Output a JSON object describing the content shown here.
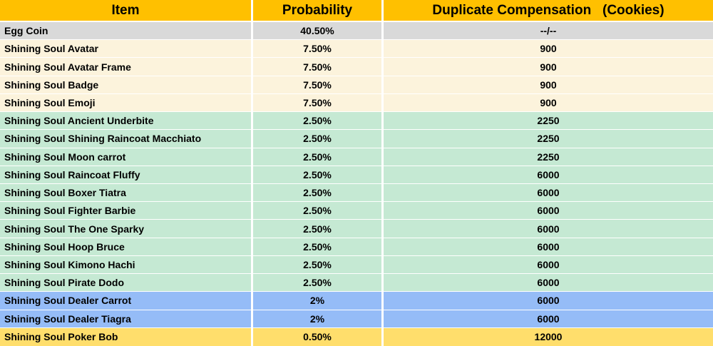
{
  "table": {
    "headers": {
      "item": "Item",
      "probability": "Probability",
      "compensation": "Duplicate Compensation   (Cookies)"
    },
    "rows": [
      {
        "item": "Egg Coin",
        "probability": "40.50%",
        "compensation": "--/--",
        "tier": "gray"
      },
      {
        "item": "Shining Soul Avatar",
        "probability": "7.50%",
        "compensation": "900",
        "tier": "cream"
      },
      {
        "item": "Shining Soul Avatar Frame",
        "probability": "7.50%",
        "compensation": "900",
        "tier": "cream"
      },
      {
        "item": "Shining Soul Badge",
        "probability": "7.50%",
        "compensation": "900",
        "tier": "cream"
      },
      {
        "item": "Shining Soul Emoji",
        "probability": "7.50%",
        "compensation": "900",
        "tier": "cream"
      },
      {
        "item": "Shining Soul Ancient Underbite",
        "probability": "2.50%",
        "compensation": "2250",
        "tier": "green"
      },
      {
        "item": "Shining Soul Shining Raincoat Macchiato",
        "probability": "2.50%",
        "compensation": "2250",
        "tier": "green"
      },
      {
        "item": "Shining Soul Moon carrot",
        "probability": "2.50%",
        "compensation": "2250",
        "tier": "green"
      },
      {
        "item": "Shining Soul Raincoat Fluffy",
        "probability": "2.50%",
        "compensation": "6000",
        "tier": "green"
      },
      {
        "item": "Shining Soul Boxer Tiatra",
        "probability": "2.50%",
        "compensation": "6000",
        "tier": "green"
      },
      {
        "item": "Shining Soul Fighter Barbie",
        "probability": "2.50%",
        "compensation": "6000",
        "tier": "green"
      },
      {
        "item": "Shining Soul The One Sparky",
        "probability": "2.50%",
        "compensation": "6000",
        "tier": "green"
      },
      {
        "item": "Shining Soul Hoop Bruce",
        "probability": "2.50%",
        "compensation": "6000",
        "tier": "green"
      },
      {
        "item": "Shining Soul Kimono Hachi",
        "probability": "2.50%",
        "compensation": "6000",
        "tier": "green"
      },
      {
        "item": "Shining Soul Pirate Dodo",
        "probability": "2.50%",
        "compensation": "6000",
        "tier": "green"
      },
      {
        "item": "Shining Soul Dealer Carrot",
        "probability": "2%",
        "compensation": "6000",
        "tier": "blue"
      },
      {
        "item": "Shining Soul Dealer Tiagra",
        "probability": "2%",
        "compensation": "6000",
        "tier": "blue"
      },
      {
        "item": "Shining Soul Poker Bob",
        "probability": "0.50%",
        "compensation": "12000",
        "tier": "gold"
      }
    ]
  },
  "colors": {
    "header_bg": "#FFC000",
    "gridline": "#FFFFFF",
    "text": "#000000",
    "tiers": {
      "gray": "#D9D9D9",
      "cream": "#FCF3DC",
      "green": "#C5E9D3",
      "blue": "#95BCF7",
      "gold": "#FFDE6C"
    }
  },
  "chart_data": {
    "type": "table",
    "title": "",
    "columns": [
      "Item",
      "Probability",
      "Duplicate Compensation (Cookies)"
    ],
    "rows": [
      [
        "Egg Coin",
        "40.50%",
        "--/--"
      ],
      [
        "Shining Soul Avatar",
        "7.50%",
        "900"
      ],
      [
        "Shining Soul Avatar Frame",
        "7.50%",
        "900"
      ],
      [
        "Shining Soul Badge",
        "7.50%",
        "900"
      ],
      [
        "Shining Soul Emoji",
        "7.50%",
        "900"
      ],
      [
        "Shining Soul Ancient Underbite",
        "2.50%",
        "2250"
      ],
      [
        "Shining Soul Shining Raincoat Macchiato",
        "2.50%",
        "2250"
      ],
      [
        "Shining Soul Moon carrot",
        "2.50%",
        "2250"
      ],
      [
        "Shining Soul Raincoat Fluffy",
        "2.50%",
        "6000"
      ],
      [
        "Shining Soul Boxer Tiatra",
        "2.50%",
        "6000"
      ],
      [
        "Shining Soul Fighter Barbie",
        "2.50%",
        "6000"
      ],
      [
        "Shining Soul The One Sparky",
        "2.50%",
        "6000"
      ],
      [
        "Shining Soul Hoop Bruce",
        "2.50%",
        "6000"
      ],
      [
        "Shining Soul Kimono Hachi",
        "2.50%",
        "6000"
      ],
      [
        "Shining Soul Pirate Dodo",
        "2.50%",
        "6000"
      ],
      [
        "Shining Soul Dealer Carrot",
        "2%",
        "6000"
      ],
      [
        "Shining Soul Dealer Tiagra",
        "2%",
        "6000"
      ],
      [
        "Shining Soul Poker Bob",
        "0.50%",
        "12000"
      ]
    ],
    "row_group_colors": {
      "header": "#FFC000",
      "Egg Coin": "#D9D9D9",
      "7.50% tier": "#FCF3DC",
      "2.50% tier": "#C5E9D3",
      "2% tier": "#95BCF7",
      "0.50% tier": "#FFDE6C"
    },
    "legend_position": "none",
    "grid": "white gridlines between cells"
  }
}
